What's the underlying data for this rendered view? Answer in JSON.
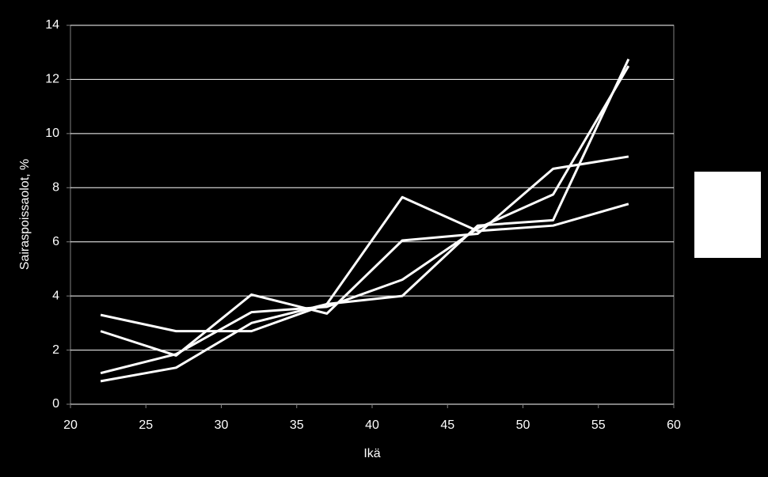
{
  "chart_data": {
    "type": "line",
    "x_label": "Ikä",
    "y_label": "Sairaspoissaolot, %",
    "x": [
      22,
      27,
      32,
      37,
      42,
      47,
      52,
      57
    ],
    "series": [
      {
        "color": "#ffffff",
        "values": [
          3.3,
          2.7,
          2.7,
          3.7,
          7.65,
          6.4,
          6.6,
          7.4
        ]
      },
      {
        "color": "#ffffff",
        "values": [
          2.7,
          1.8,
          4.05,
          3.35,
          6.05,
          6.3,
          8.7,
          9.15
        ]
      },
      {
        "color": "#ffffff",
        "values": [
          1.15,
          1.85,
          3.4,
          3.6,
          4.6,
          6.5,
          7.75,
          12.5
        ]
      },
      {
        "color": "#ffffff",
        "values": [
          0.85,
          1.35,
          3.0,
          3.7,
          4.0,
          6.6,
          6.8,
          12.75
        ]
      }
    ],
    "xlim": [
      20,
      60
    ],
    "xticks": [
      20,
      25,
      30,
      35,
      40,
      45,
      50,
      55,
      60
    ],
    "ylim": [
      0,
      14
    ],
    "yticks": [
      0,
      2,
      4,
      6,
      8,
      10,
      12,
      14
    ],
    "grid": true
  }
}
